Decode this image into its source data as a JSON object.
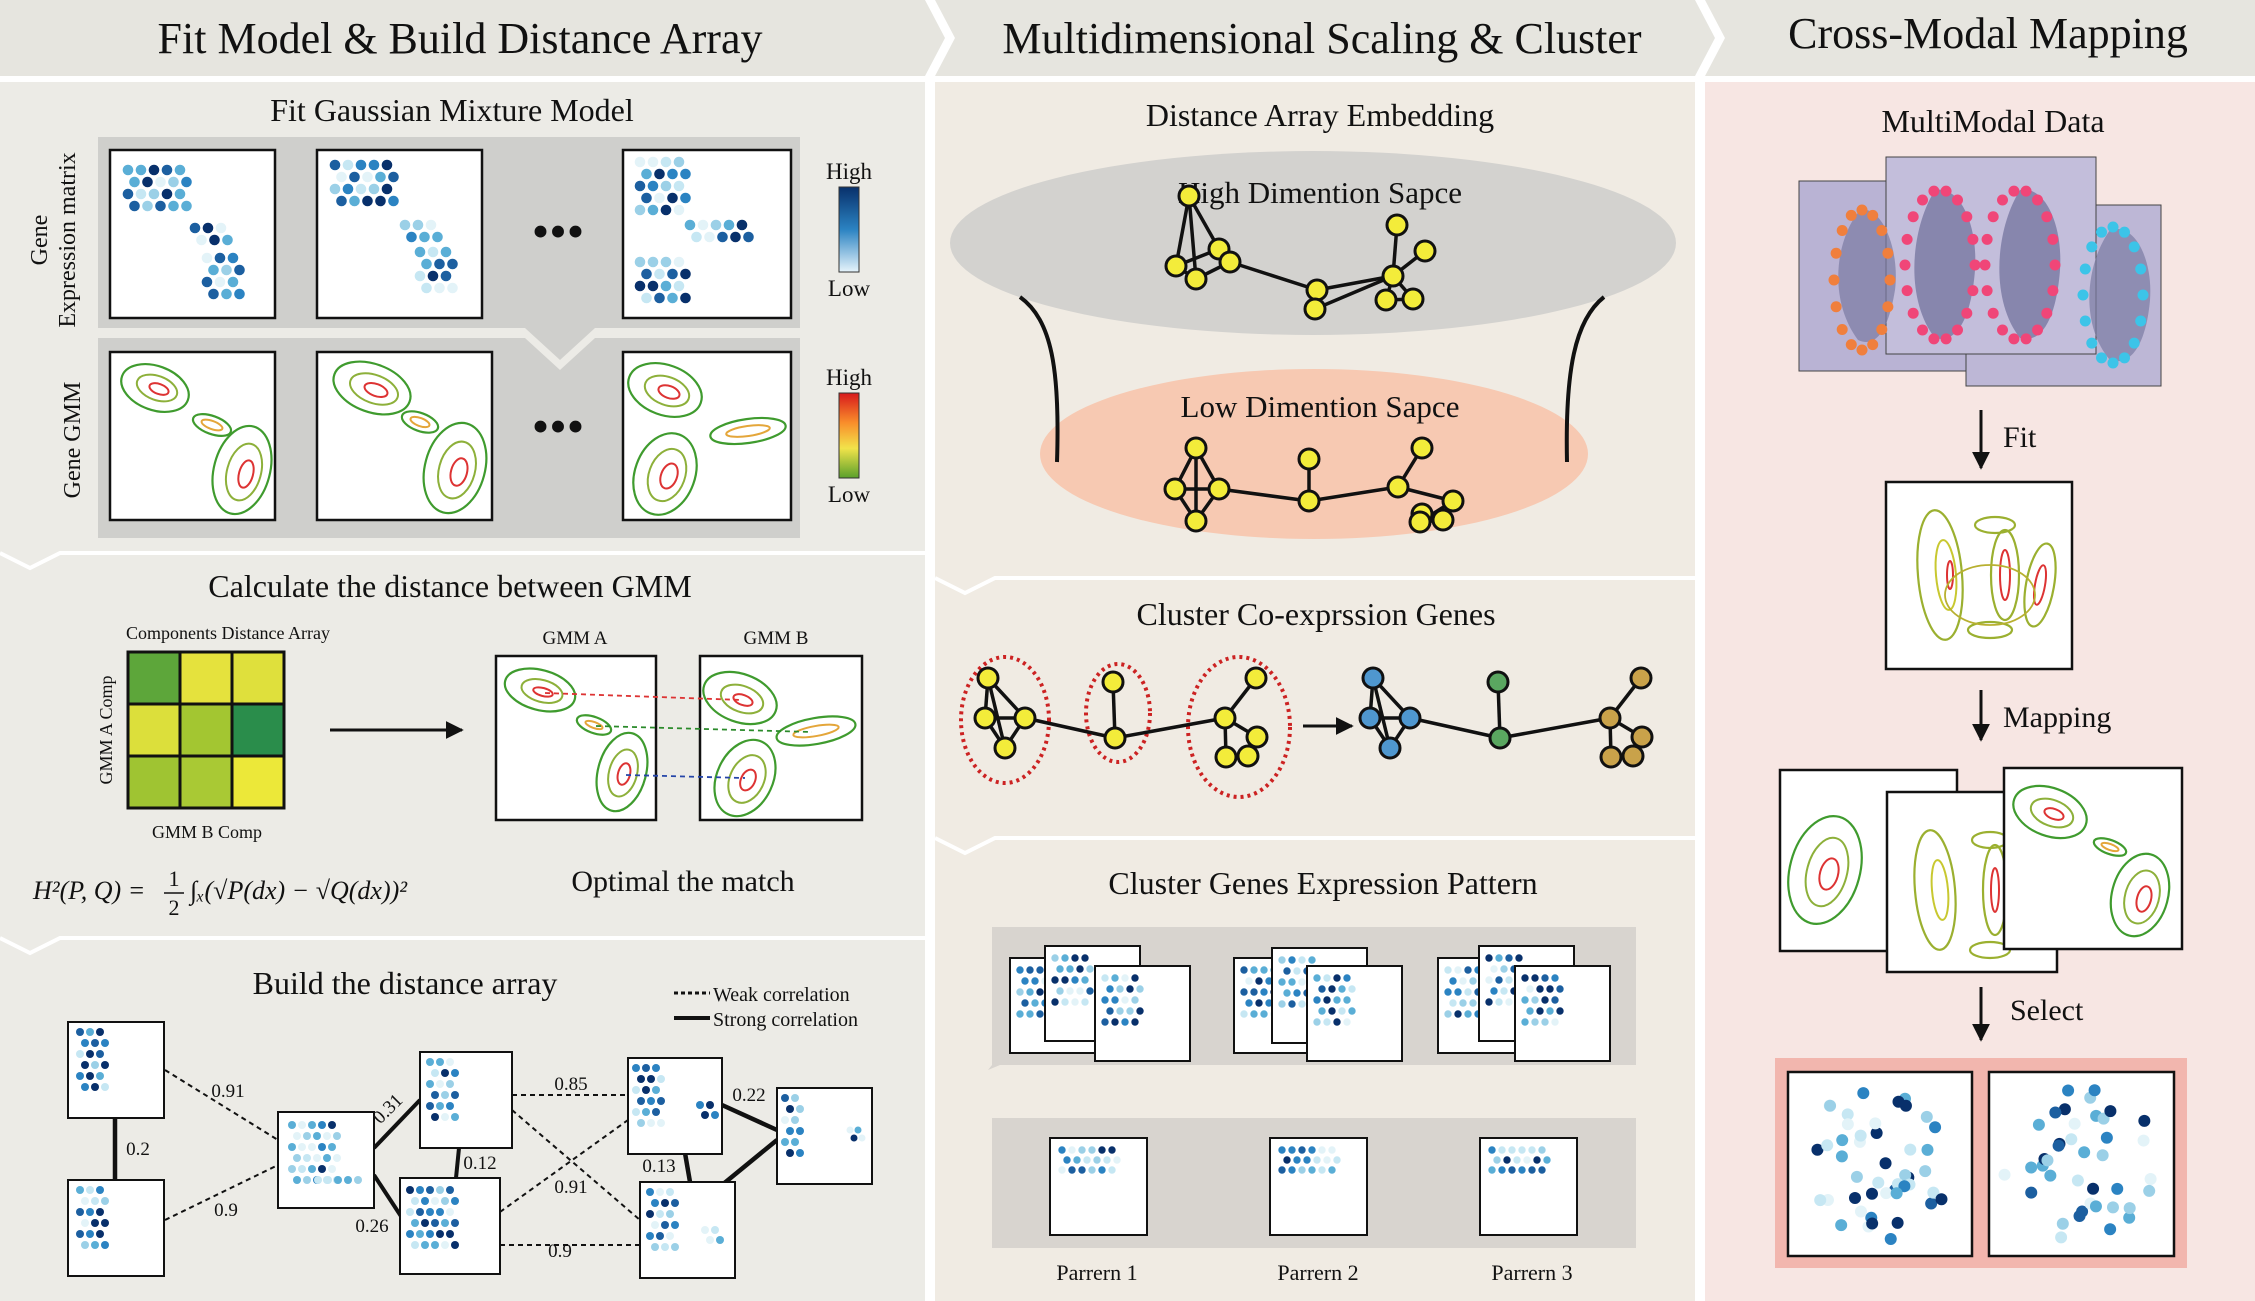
{
  "headers": {
    "col1": "Fit Model & Build Distance Array",
    "col2": "Multidimensional Scaling & Cluster",
    "col3": "Cross-Modal Mapping"
  },
  "fit_gmm": {
    "title": "Fit Gaussian Mixture Model",
    "row1_label_line1": "Gene",
    "row1_label_line2": "Expression matrix",
    "row2_label": "Gene GMM",
    "legend_blue_high": "High",
    "legend_blue_low": "Low",
    "legend_heat_high": "High",
    "legend_heat_low": "Low",
    "ellipsis": "•••"
  },
  "calc": {
    "title": "Calculate the distance between GMM",
    "matrix_title": "Components Distance Array",
    "matrix_ylabel": "GMM A Comp",
    "matrix_xlabel": "GMM B Comp",
    "gmm_a": "GMM A",
    "gmm_b": "GMM B",
    "caption": "Optimal the match",
    "formula_lhs": "H²(P, Q) =",
    "formula_rhs": "∫ₓ(√P(dx) − √Q(dx))²",
    "formula_frac_num": "1",
    "formula_frac_den": "2"
  },
  "build": {
    "title": "Build the distance array",
    "legend_weak": "Weak correlation",
    "legend_strong": "Strong correlation",
    "edge_labels": [
      "0.91",
      "0.2",
      "0.9",
      "0.31",
      "0.26",
      "0.12",
      "0.85",
      "0.91",
      "0.9",
      "0.22",
      "0.13"
    ]
  },
  "mds": {
    "title": "Distance Array Embedding",
    "high": "High Dimention Sapce",
    "low": "Low Dimention Sapce"
  },
  "cluster": {
    "title": "Cluster Co-exprssion Genes"
  },
  "pattern": {
    "title": "Cluster Genes Expression Pattern",
    "labels": [
      "Parrern 1",
      "Parrern 2",
      "Parrern 3"
    ]
  },
  "cross": {
    "title": "MultiModal Data",
    "fit": "Fit",
    "mapping": "Mapping",
    "select": "Select"
  },
  "colors": {
    "header_bg": "#e6e5df",
    "col1_bg": "#ecebe6",
    "col2_bg": "#f0ebe3",
    "col3_bg": "#f7e6e3",
    "node_yellow": "#f3ec3a",
    "high_ellipse": "#d3d2cf",
    "low_ellipse": "#f7c9b2",
    "cluster_red": "#cc2222",
    "select_bg": "#f2b6ae"
  }
}
